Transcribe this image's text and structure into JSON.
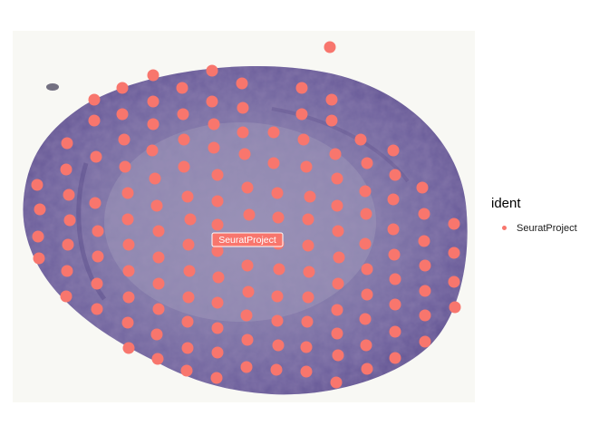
{
  "chart_data": {
    "type": "scatter",
    "title": "",
    "xlabel": "",
    "ylabel": "",
    "grid": false,
    "axes_visible": false,
    "background": "tissue-histology-image",
    "legend": {
      "title": "ident",
      "placement": "right",
      "entries": [
        "SeuratProject"
      ]
    },
    "series": [
      {
        "name": "SeuratProject",
        "color": "#F8766D",
        "label": "SeuratProject",
        "rows": [
          {
            "y": 52,
            "x": [
              364
            ]
          },
          {
            "y": 78,
            "x": [
              234
            ]
          },
          {
            "y": 83,
            "x": [
              169
            ]
          },
          {
            "y": 92,
            "x": [
              267
            ]
          },
          {
            "y": 97,
            "x": [
              135,
              201,
              333
            ]
          },
          {
            "y": 110,
            "x": [
              104,
              366
            ]
          },
          {
            "y": 112,
            "x": [
              169,
              234
            ]
          },
          {
            "y": 119,
            "x": [
              268
            ]
          },
          {
            "y": 126,
            "x": [
              135,
              202,
              333
            ]
          },
          {
            "y": 133,
            "x": [
              104,
              366
            ]
          },
          {
            "y": 137,
            "x": [
              169,
              236
            ]
          },
          {
            "y": 146,
            "x": [
              268,
              302
            ]
          },
          {
            "y": 154,
            "x": [
              137,
              203,
              335,
              398
            ]
          },
          {
            "y": 158,
            "x": [
              74
            ]
          },
          {
            "y": 163,
            "x": [
              236
            ]
          },
          {
            "y": 166,
            "x": [
              168,
              434
            ]
          },
          {
            "y": 170,
            "x": [
              270,
              370
            ]
          },
          {
            "y": 173,
            "x": [
              106
            ]
          },
          {
            "y": 180,
            "x": [
              302,
              405
            ]
          },
          {
            "y": 184,
            "x": [
              138,
              203,
              338
            ]
          },
          {
            "y": 187,
            "x": [
              73
            ]
          },
          {
            "y": 193,
            "x": [
              240,
              436
            ]
          },
          {
            "y": 197,
            "x": [
              171,
              372
            ]
          },
          {
            "y": 204,
            "x": [
              41
            ]
          },
          {
            "y": 207,
            "x": [
              273,
              466
            ]
          },
          {
            "y": 211,
            "x": [
              403
            ]
          },
          {
            "y": 213,
            "x": [
              141,
              306
            ]
          },
          {
            "y": 215,
            "x": [
              76
            ]
          },
          {
            "y": 217,
            "x": [
              207,
              342
            ]
          },
          {
            "y": 220,
            "x": [
              434
            ]
          },
          {
            "y": 222,
            "x": [
              240
            ]
          },
          {
            "y": 224,
            "x": [
              105
            ]
          },
          {
            "y": 227,
            "x": [
              173,
              372
            ]
          },
          {
            "y": 231,
            "x": [
              44
            ]
          },
          {
            "y": 236,
            "x": [
              404,
              468
            ]
          },
          {
            "y": 237,
            "x": [
              275
            ]
          },
          {
            "y": 240,
            "x": [
              307
            ]
          },
          {
            "y": 242,
            "x": [
              141,
              210,
              340
            ]
          },
          {
            "y": 243,
            "x": [
              77
            ]
          },
          {
            "y": 247,
            "x": [
              501
            ]
          },
          {
            "y": 248,
            "x": [
              240
            ]
          },
          {
            "y": 253,
            "x": [
              434
            ]
          },
          {
            "y": 255,
            "x": [
              108,
              175,
              373
            ]
          },
          {
            "y": 261,
            "x": [
              42
            ]
          },
          {
            "y": 264,
            "x": [
              275
            ]
          },
          {
            "y": 266,
            "x": [
              468
            ]
          },
          {
            "y": 269,
            "x": [
              307,
              403
            ]
          },
          {
            "y": 270,
            "x": [
              75,
              142,
              208
            ]
          },
          {
            "y": 271,
            "x": [
              340
            ]
          },
          {
            "y": 277,
            "x": [
              240
            ]
          },
          {
            "y": 279,
            "x": [
              501
            ]
          },
          {
            "y": 281,
            "x": [
              435
            ]
          },
          {
            "y": 283,
            "x": [
              108
            ]
          },
          {
            "y": 284,
            "x": [
              175,
              374
            ]
          },
          {
            "y": 285,
            "x": [
              43
            ]
          },
          {
            "y": 293,
            "x": [
              273,
              469
            ]
          },
          {
            "y": 297,
            "x": [
              308,
              405
            ]
          },
          {
            "y": 299,
            "x": [
              74,
              142,
              209
            ]
          },
          {
            "y": 300,
            "x": [
              341
            ]
          },
          {
            "y": 306,
            "x": [
              241
            ]
          },
          {
            "y": 308,
            "x": [
              436
            ]
          },
          {
            "y": 311,
            "x": [
              501
            ]
          },
          {
            "y": 313,
            "x": [
              107,
              175,
              373
            ]
          },
          {
            "y": 321,
            "x": [
              469
            ]
          },
          {
            "y": 322,
            "x": [
              274
            ]
          },
          {
            "y": 325,
            "x": [
              405
            ]
          },
          {
            "y": 327,
            "x": [
              73,
              306
            ]
          },
          {
            "y": 328,
            "x": [
              142,
              208,
              340
            ]
          },
          {
            "y": 334,
            "x": [
              240
            ]
          },
          {
            "y": 336,
            "x": [
              436
            ]
          },
          {
            "y": 339,
            "x": [
              502
            ]
          },
          {
            "y": 341,
            "x": [
              107,
              175
            ]
          },
          {
            "y": 342,
            "x": [
              372
            ]
          },
          {
            "y": 348,
            "x": [
              272,
              469
            ]
          },
          {
            "y": 352,
            "x": [
              403
            ]
          },
          {
            "y": 354,
            "x": [
              306
            ]
          },
          {
            "y": 355,
            "x": [
              207,
              339
            ]
          },
          {
            "y": 356,
            "x": [
              141
            ]
          },
          {
            "y": 362,
            "x": [
              240
            ]
          },
          {
            "y": 366,
            "x": [
              436
            ]
          },
          {
            "y": 368,
            "x": [
              372
            ]
          },
          {
            "y": 369,
            "x": [
              173
            ]
          },
          {
            "y": 375,
            "x": [
              273
            ]
          },
          {
            "y": 377,
            "x": [
              469
            ]
          },
          {
            "y": 381,
            "x": [
              307,
              404
            ]
          },
          {
            "y": 383,
            "x": [
              338
            ]
          },
          {
            "y": 384,
            "x": [
              142,
              207
            ]
          },
          {
            "y": 389,
            "x": [
              240
            ]
          },
          {
            "y": 392,
            "x": [
              373
            ]
          },
          {
            "y": 395,
            "x": [
              436
            ]
          },
          {
            "y": 396,
            "x": [
              174
            ]
          },
          {
            "y": 405,
            "x": [
              272
            ]
          },
          {
            "y": 407,
            "x": [
              405
            ]
          },
          {
            "y": 408,
            "x": [
              305
            ]
          },
          {
            "y": 409,
            "x": [
              206
            ]
          },
          {
            "y": 410,
            "x": [
              338
            ]
          },
          {
            "y": 417,
            "x": [
              239
            ]
          },
          {
            "y": 422,
            "x": [
              371
            ]
          }
        ]
      }
    ]
  }
}
